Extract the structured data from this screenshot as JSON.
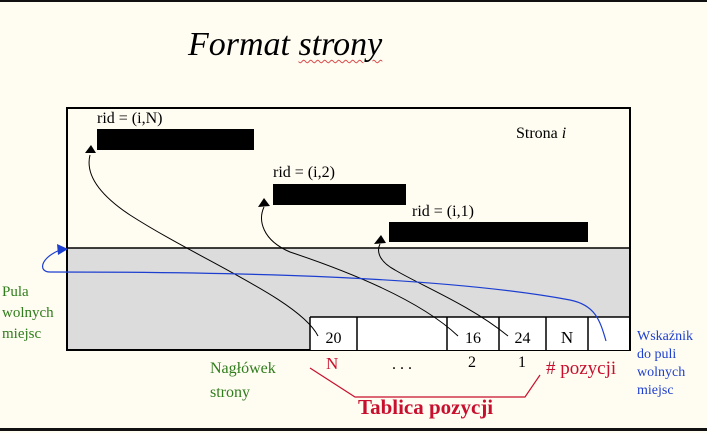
{
  "title_part1": "Format ",
  "title_part2": "strony",
  "page_label": {
    "text": "Strona ",
    "var": "i"
  },
  "records": [
    {
      "label": "rid = (i,N)"
    },
    {
      "label": "rid = (i,2)"
    },
    {
      "label": "rid = (i,1)"
    }
  ],
  "slots": {
    "offsets": [
      "20",
      "16",
      "24"
    ],
    "count_value": "N",
    "indices": [
      "N",
      ". . .",
      "2",
      "1"
    ],
    "count_label": "# pozycji"
  },
  "free_pool_label": [
    "Pula",
    "wolnych",
    "miejsc"
  ],
  "pointer_label": [
    "Wskaźnik",
    "do puli",
    "wolnych",
    "miejsc"
  ],
  "header_label": [
    "Nagłówek",
    "strony"
  ],
  "slot_table_label": "Tablica pozycji",
  "colors": {
    "background": "#fffcf1",
    "free_space": "#dcdcdc",
    "record": "#000000",
    "green": "#2f7d1c",
    "blue": "#1d3fd0",
    "red": "#c8102e"
  }
}
